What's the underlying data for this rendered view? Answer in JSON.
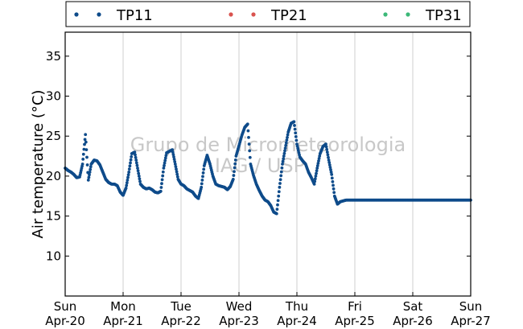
{
  "legend": {
    "items": [
      {
        "name": "TP11",
        "color": "#0e4b8a"
      },
      {
        "name": "TP21",
        "color": "#d9534f"
      },
      {
        "name": "TP31",
        "color": "#3cb878"
      }
    ]
  },
  "watermark": {
    "line1": "Grupo de Micrometeorologia",
    "line2": "IAG / USP"
  },
  "chart_data": {
    "type": "scatter",
    "ylabel": "Air temperature (°C)",
    "ylim": [
      5,
      38
    ],
    "xlim": [
      0,
      7
    ],
    "yticks": [
      10,
      15,
      20,
      25,
      30,
      35
    ],
    "xticks": [
      {
        "x": 0,
        "day": "Sun",
        "date": "Apr-20"
      },
      {
        "x": 1,
        "day": "Mon",
        "date": "Apr-21"
      },
      {
        "x": 2,
        "day": "Tue",
        "date": "Apr-22"
      },
      {
        "x": 3,
        "day": "Wed",
        "date": "Apr-23"
      },
      {
        "x": 4,
        "day": "Thu",
        "date": "Apr-24"
      },
      {
        "x": 5,
        "day": "Fri",
        "date": "Apr-25"
      },
      {
        "x": 6,
        "day": "Sat",
        "date": "Apr-26"
      },
      {
        "x": 7,
        "day": "Sun",
        "date": "Apr-27"
      }
    ],
    "grid": "vertical",
    "legend_position": "top",
    "series": [
      {
        "name": "TP11",
        "color": "#0e4b8a",
        "x": [
          0.0,
          0.05,
          0.1,
          0.15,
          0.2,
          0.25,
          0.3,
          0.35,
          0.4,
          0.45,
          0.5,
          0.55,
          0.6,
          0.65,
          0.7,
          0.75,
          0.8,
          0.85,
          0.9,
          0.95,
          1.0,
          1.05,
          1.1,
          1.15,
          1.2,
          1.25,
          1.3,
          1.35,
          1.4,
          1.45,
          1.5,
          1.55,
          1.6,
          1.65,
          1.7,
          1.75,
          1.8,
          1.85,
          1.9,
          1.95,
          2.0,
          2.05,
          2.1,
          2.15,
          2.2,
          2.25,
          2.3,
          2.35,
          2.4,
          2.45,
          2.5,
          2.55,
          2.6,
          2.65,
          2.7,
          2.75,
          2.8,
          2.85,
          2.9,
          2.95,
          3.0,
          3.05,
          3.1,
          3.15,
          3.2,
          3.25,
          3.3,
          3.35,
          3.4,
          3.45,
          3.5,
          3.55,
          3.6,
          3.65,
          3.7,
          3.75,
          3.8,
          3.85,
          3.9,
          3.95,
          4.0,
          4.05,
          4.1,
          4.15,
          4.2,
          4.25,
          4.3,
          4.35,
          4.4,
          4.45,
          4.5,
          4.55,
          4.6,
          4.65,
          4.7,
          4.75,
          4.8,
          4.85,
          4.9,
          4.95,
          5.0,
          5.05,
          5.1,
          5.15,
          5.2,
          5.25,
          5.3,
          5.35,
          5.4,
          5.45,
          5.5,
          5.55,
          5.6,
          5.65,
          5.7,
          5.75,
          5.8,
          5.85,
          5.9,
          5.95,
          6.0,
          6.05,
          6.1,
          6.15,
          6.2,
          6.25,
          6.3,
          6.35,
          6.4,
          6.45,
          6.5,
          6.55,
          6.6,
          6.65,
          6.7,
          6.75,
          6.8,
          6.85,
          6.9,
          6.95,
          7.0
        ],
        "y": [
          21.0,
          20.7,
          20.5,
          20.2,
          19.8,
          19.9,
          21.5,
          25.2,
          19.5,
          21.5,
          22.0,
          21.9,
          21.4,
          20.5,
          19.6,
          19.2,
          19.0,
          19.0,
          18.8,
          18.0,
          17.6,
          18.5,
          20.5,
          22.8,
          23.0,
          21.0,
          19.0,
          18.6,
          18.4,
          18.5,
          18.3,
          18.0,
          17.9,
          18.1,
          21.0,
          22.9,
          23.1,
          23.3,
          21.5,
          19.6,
          19.0,
          18.8,
          18.4,
          18.2,
          18.0,
          17.5,
          17.2,
          18.6,
          21.3,
          22.6,
          21.5,
          20.0,
          19.0,
          18.8,
          18.7,
          18.6,
          18.3,
          18.7,
          19.6,
          22.5,
          23.8,
          25.1,
          26.1,
          26.5,
          21.5,
          20.1,
          19.0,
          18.2,
          17.5,
          17.0,
          16.8,
          16.3,
          15.5,
          15.3,
          18.6,
          21.5,
          23.5,
          25.5,
          26.6,
          26.8,
          24.0,
          22.4,
          21.9,
          21.5,
          20.5,
          19.8,
          19.0,
          21.0,
          22.8,
          23.7,
          24.0,
          22.0,
          20.2,
          17.5,
          16.5,
          16.8,
          16.9,
          17.0,
          17.0,
          17.0,
          17.0,
          17.0,
          17.0,
          17.0,
          17.0,
          17.0,
          17.0,
          17.0,
          17.0,
          17.0,
          17.0,
          17.0,
          17.0,
          17.0,
          17.0,
          17.0,
          17.0,
          17.0,
          17.0,
          17.0,
          17.0,
          17.0,
          17.0,
          17.0,
          17.0,
          17.0,
          17.0,
          17.0,
          17.0,
          17.0,
          17.0,
          17.0,
          17.0,
          17.0,
          17.0,
          17.0,
          17.0,
          17.0,
          17.0,
          17.0,
          17.0
        ]
      },
      {
        "name": "TP21",
        "color": "#d9534f",
        "x": [],
        "y": []
      },
      {
        "name": "TP31",
        "color": "#3cb878",
        "x": [],
        "y": []
      }
    ]
  }
}
